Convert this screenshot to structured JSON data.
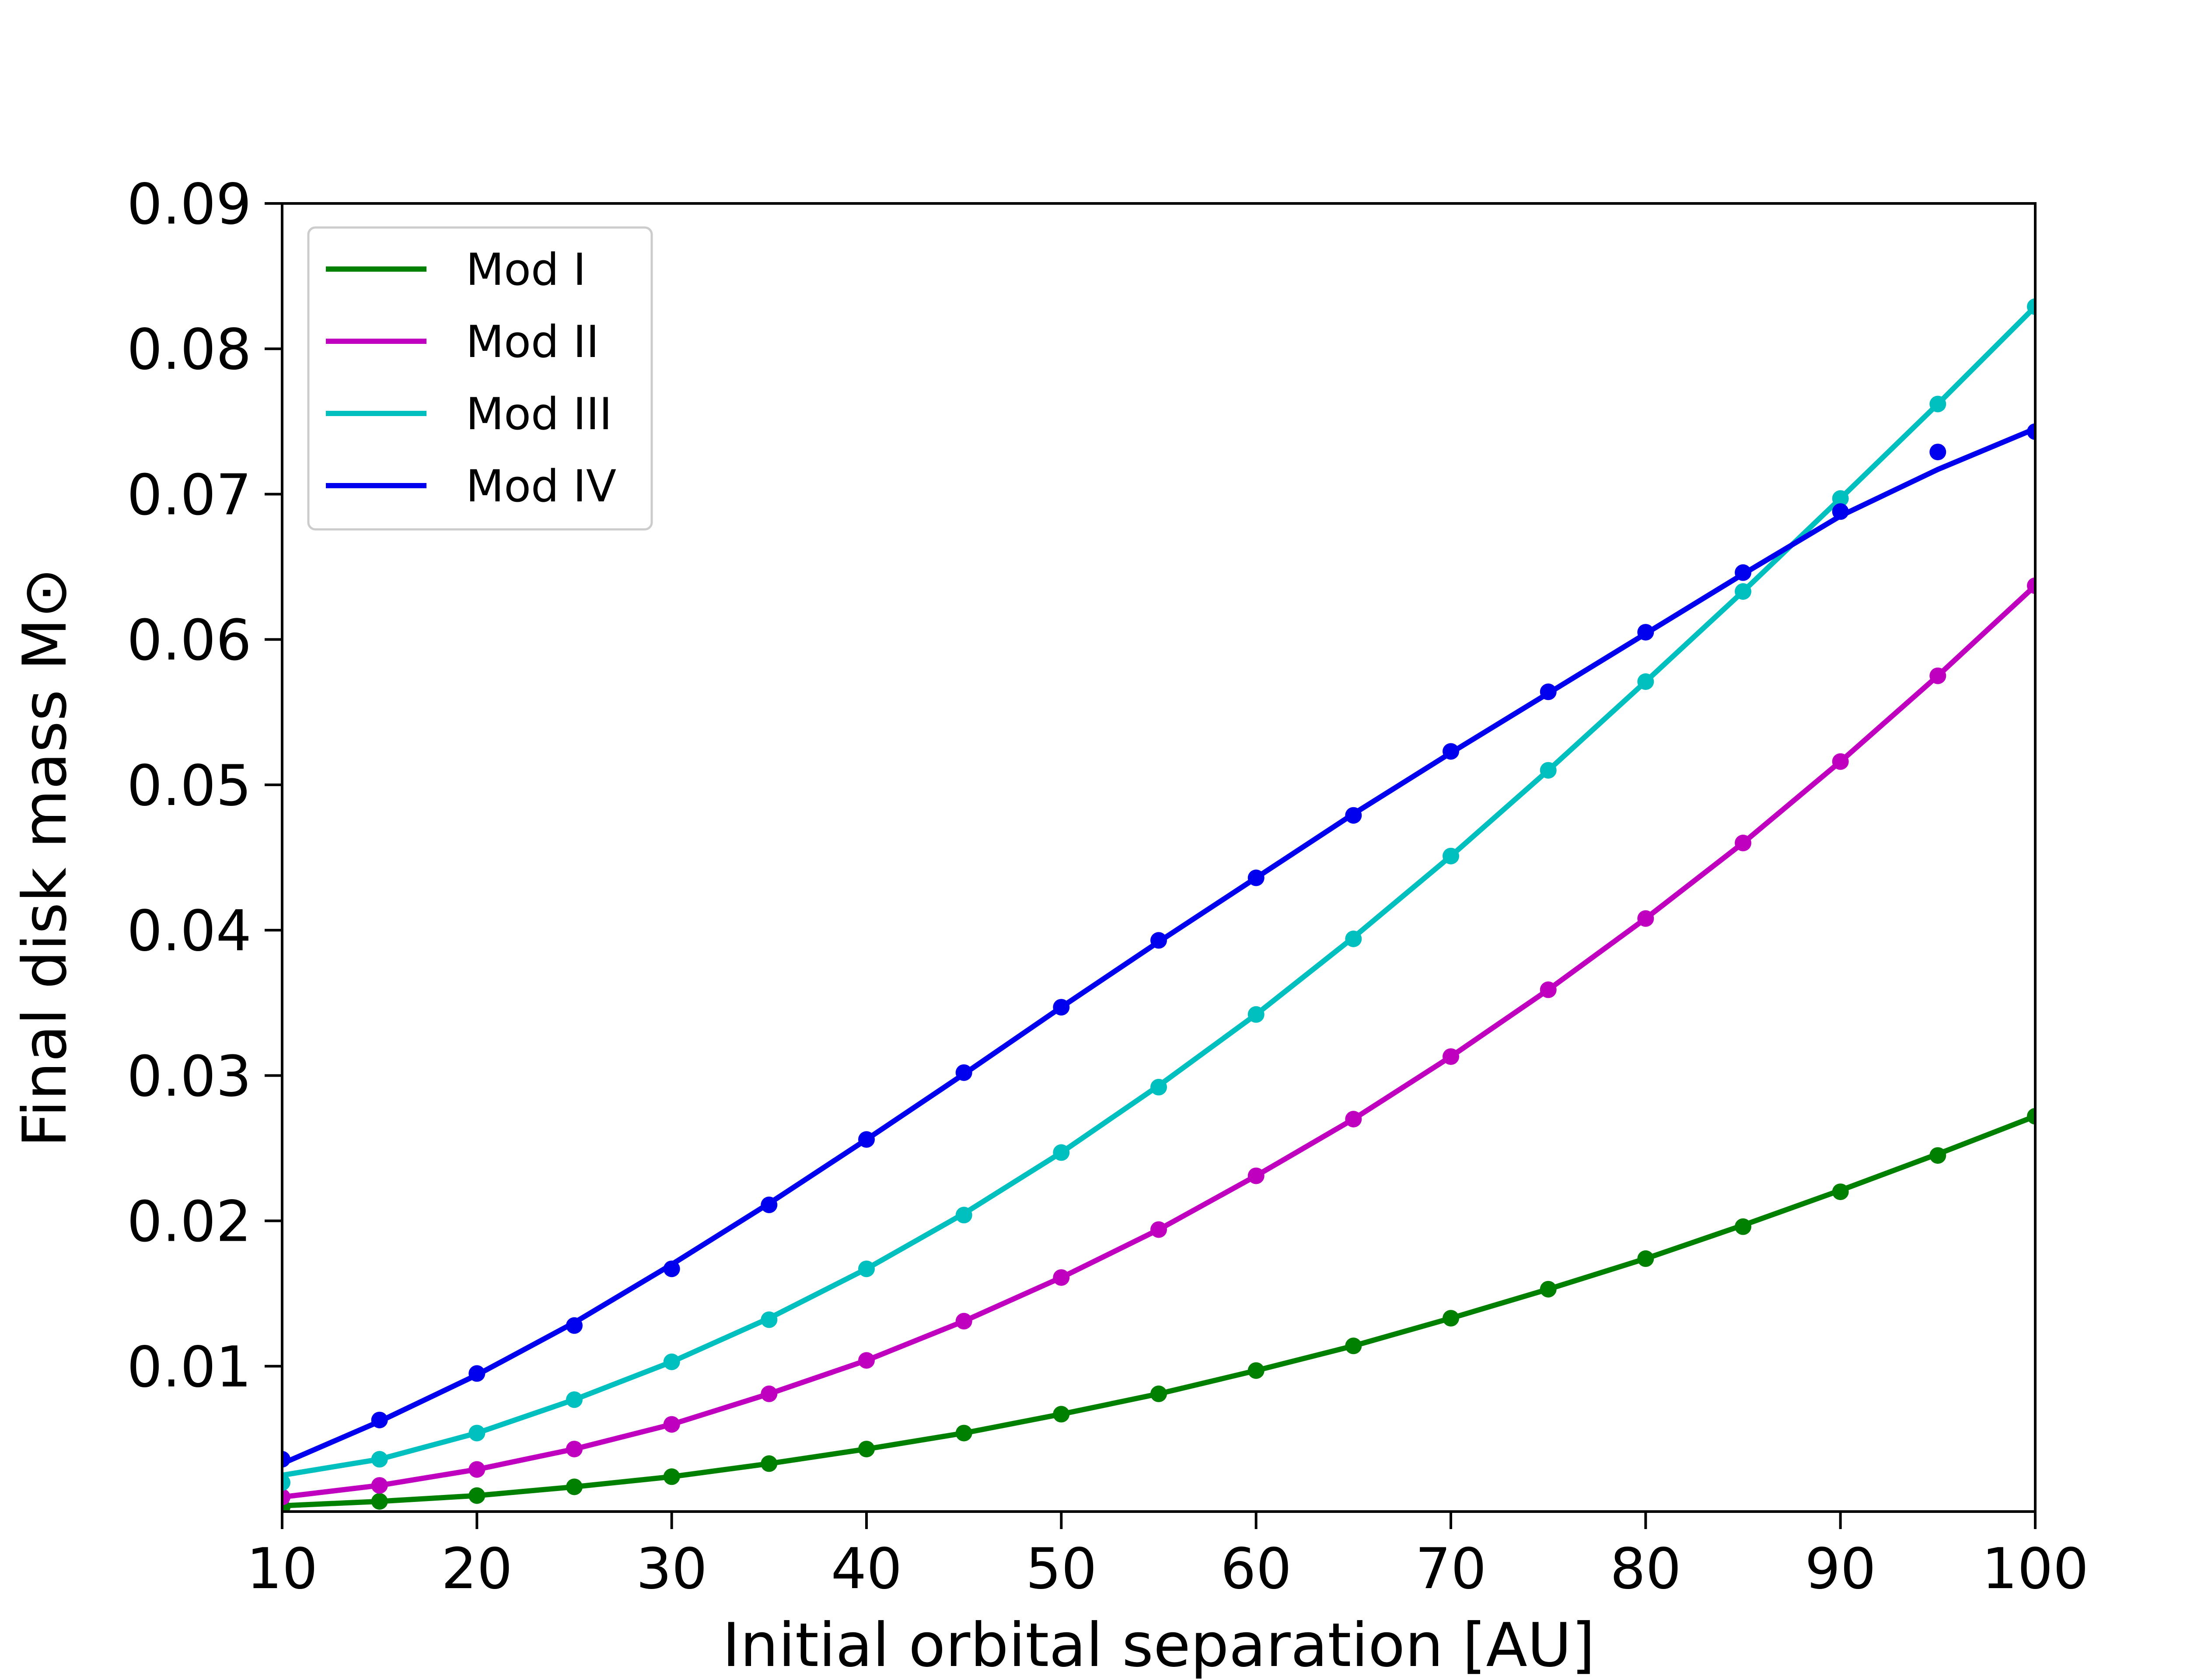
{
  "chart_data": {
    "type": "line",
    "title": "",
    "xlabel": "Initial orbital separation [AU]",
    "ylabel": "Final disk mass M⊙",
    "xlim": [
      10,
      100
    ],
    "ylim": [
      0,
      0.09
    ],
    "xticks": [
      10,
      20,
      30,
      40,
      50,
      60,
      70,
      80,
      90,
      100
    ],
    "xtick_labels": [
      "10",
      "20",
      "30",
      "40",
      "50",
      "60",
      "70",
      "80",
      "90",
      "100"
    ],
    "yticks": [
      0.01,
      0.02,
      0.03,
      0.04,
      0.05,
      0.06,
      0.07,
      0.08,
      0.09
    ],
    "ytick_labels": [
      "0.01",
      "0.02",
      "0.03",
      "0.04",
      "0.05",
      "0.06",
      "0.07",
      "0.08",
      "0.09"
    ],
    "grid": false,
    "legend_position": "top-left",
    "x": [
      10,
      15,
      20,
      25,
      30,
      35,
      40,
      45,
      50,
      55,
      60,
      65,
      70,
      75,
      80,
      85,
      90,
      95,
      100
    ],
    "series": [
      {
        "name": "Mod I",
        "color": "#008000",
        "points": [
          0.0003,
          0.0007,
          0.0011,
          0.0017,
          0.0024,
          0.0033,
          0.0043,
          0.0054,
          0.0067,
          0.0081,
          0.0097,
          0.0114,
          0.0133,
          0.0153,
          0.0174,
          0.0196,
          0.022,
          0.0245,
          0.0272
        ],
        "fit": [
          0.0004,
          0.0007,
          0.0011,
          0.0017,
          0.0024,
          0.0033,
          0.0043,
          0.0054,
          0.0067,
          0.0081,
          0.0097,
          0.0114,
          0.0133,
          0.0153,
          0.0174,
          0.0197,
          0.0221,
          0.0246,
          0.0272
        ]
      },
      {
        "name": "Mod II",
        "color": "#bf00bf",
        "points": [
          0.001,
          0.0018,
          0.0029,
          0.0043,
          0.006,
          0.0081,
          0.0104,
          0.0131,
          0.0161,
          0.0194,
          0.0231,
          0.027,
          0.0313,
          0.0359,
          0.0408,
          0.046,
          0.0516,
          0.0575,
          0.0637
        ],
        "fit": [
          0.001,
          0.0018,
          0.0029,
          0.0043,
          0.006,
          0.0081,
          0.0104,
          0.0131,
          0.0161,
          0.0194,
          0.0231,
          0.027,
          0.0313,
          0.0359,
          0.0408,
          0.046,
          0.0516,
          0.0575,
          0.0637
        ]
      },
      {
        "name": "Mod III",
        "color": "#00bfbf",
        "points": [
          0.002,
          0.0036,
          0.0054,
          0.0077,
          0.0103,
          0.0132,
          0.0167,
          0.0204,
          0.0247,
          0.0292,
          0.0342,
          0.0394,
          0.0451,
          0.051,
          0.0571,
          0.0633,
          0.0697,
          0.0762,
          0.0829
        ],
        "fit": [
          0.0025,
          0.0036,
          0.0054,
          0.0077,
          0.0103,
          0.0133,
          0.0167,
          0.0205,
          0.0247,
          0.0293,
          0.0342,
          0.0395,
          0.0451,
          0.051,
          0.0571,
          0.0633,
          0.0697,
          0.0762,
          0.0829
        ]
      },
      {
        "name": "Mod IV",
        "color": "#0000ee",
        "points": [
          0.0036,
          0.0063,
          0.0095,
          0.0128,
          0.0167,
          0.0211,
          0.0256,
          0.0302,
          0.0347,
          0.0393,
          0.0436,
          0.0479,
          0.0523,
          0.0564,
          0.0605,
          0.0646,
          0.0688,
          0.0729,
          0.0743
        ],
        "fit": [
          0.0033,
          0.0062,
          0.0094,
          0.013,
          0.017,
          0.0212,
          0.0256,
          0.0301,
          0.0347,
          0.0392,
          0.0436,
          0.048,
          0.0522,
          0.0563,
          0.0604,
          0.0645,
          0.0685,
          0.0717,
          0.0745
        ]
      }
    ]
  }
}
